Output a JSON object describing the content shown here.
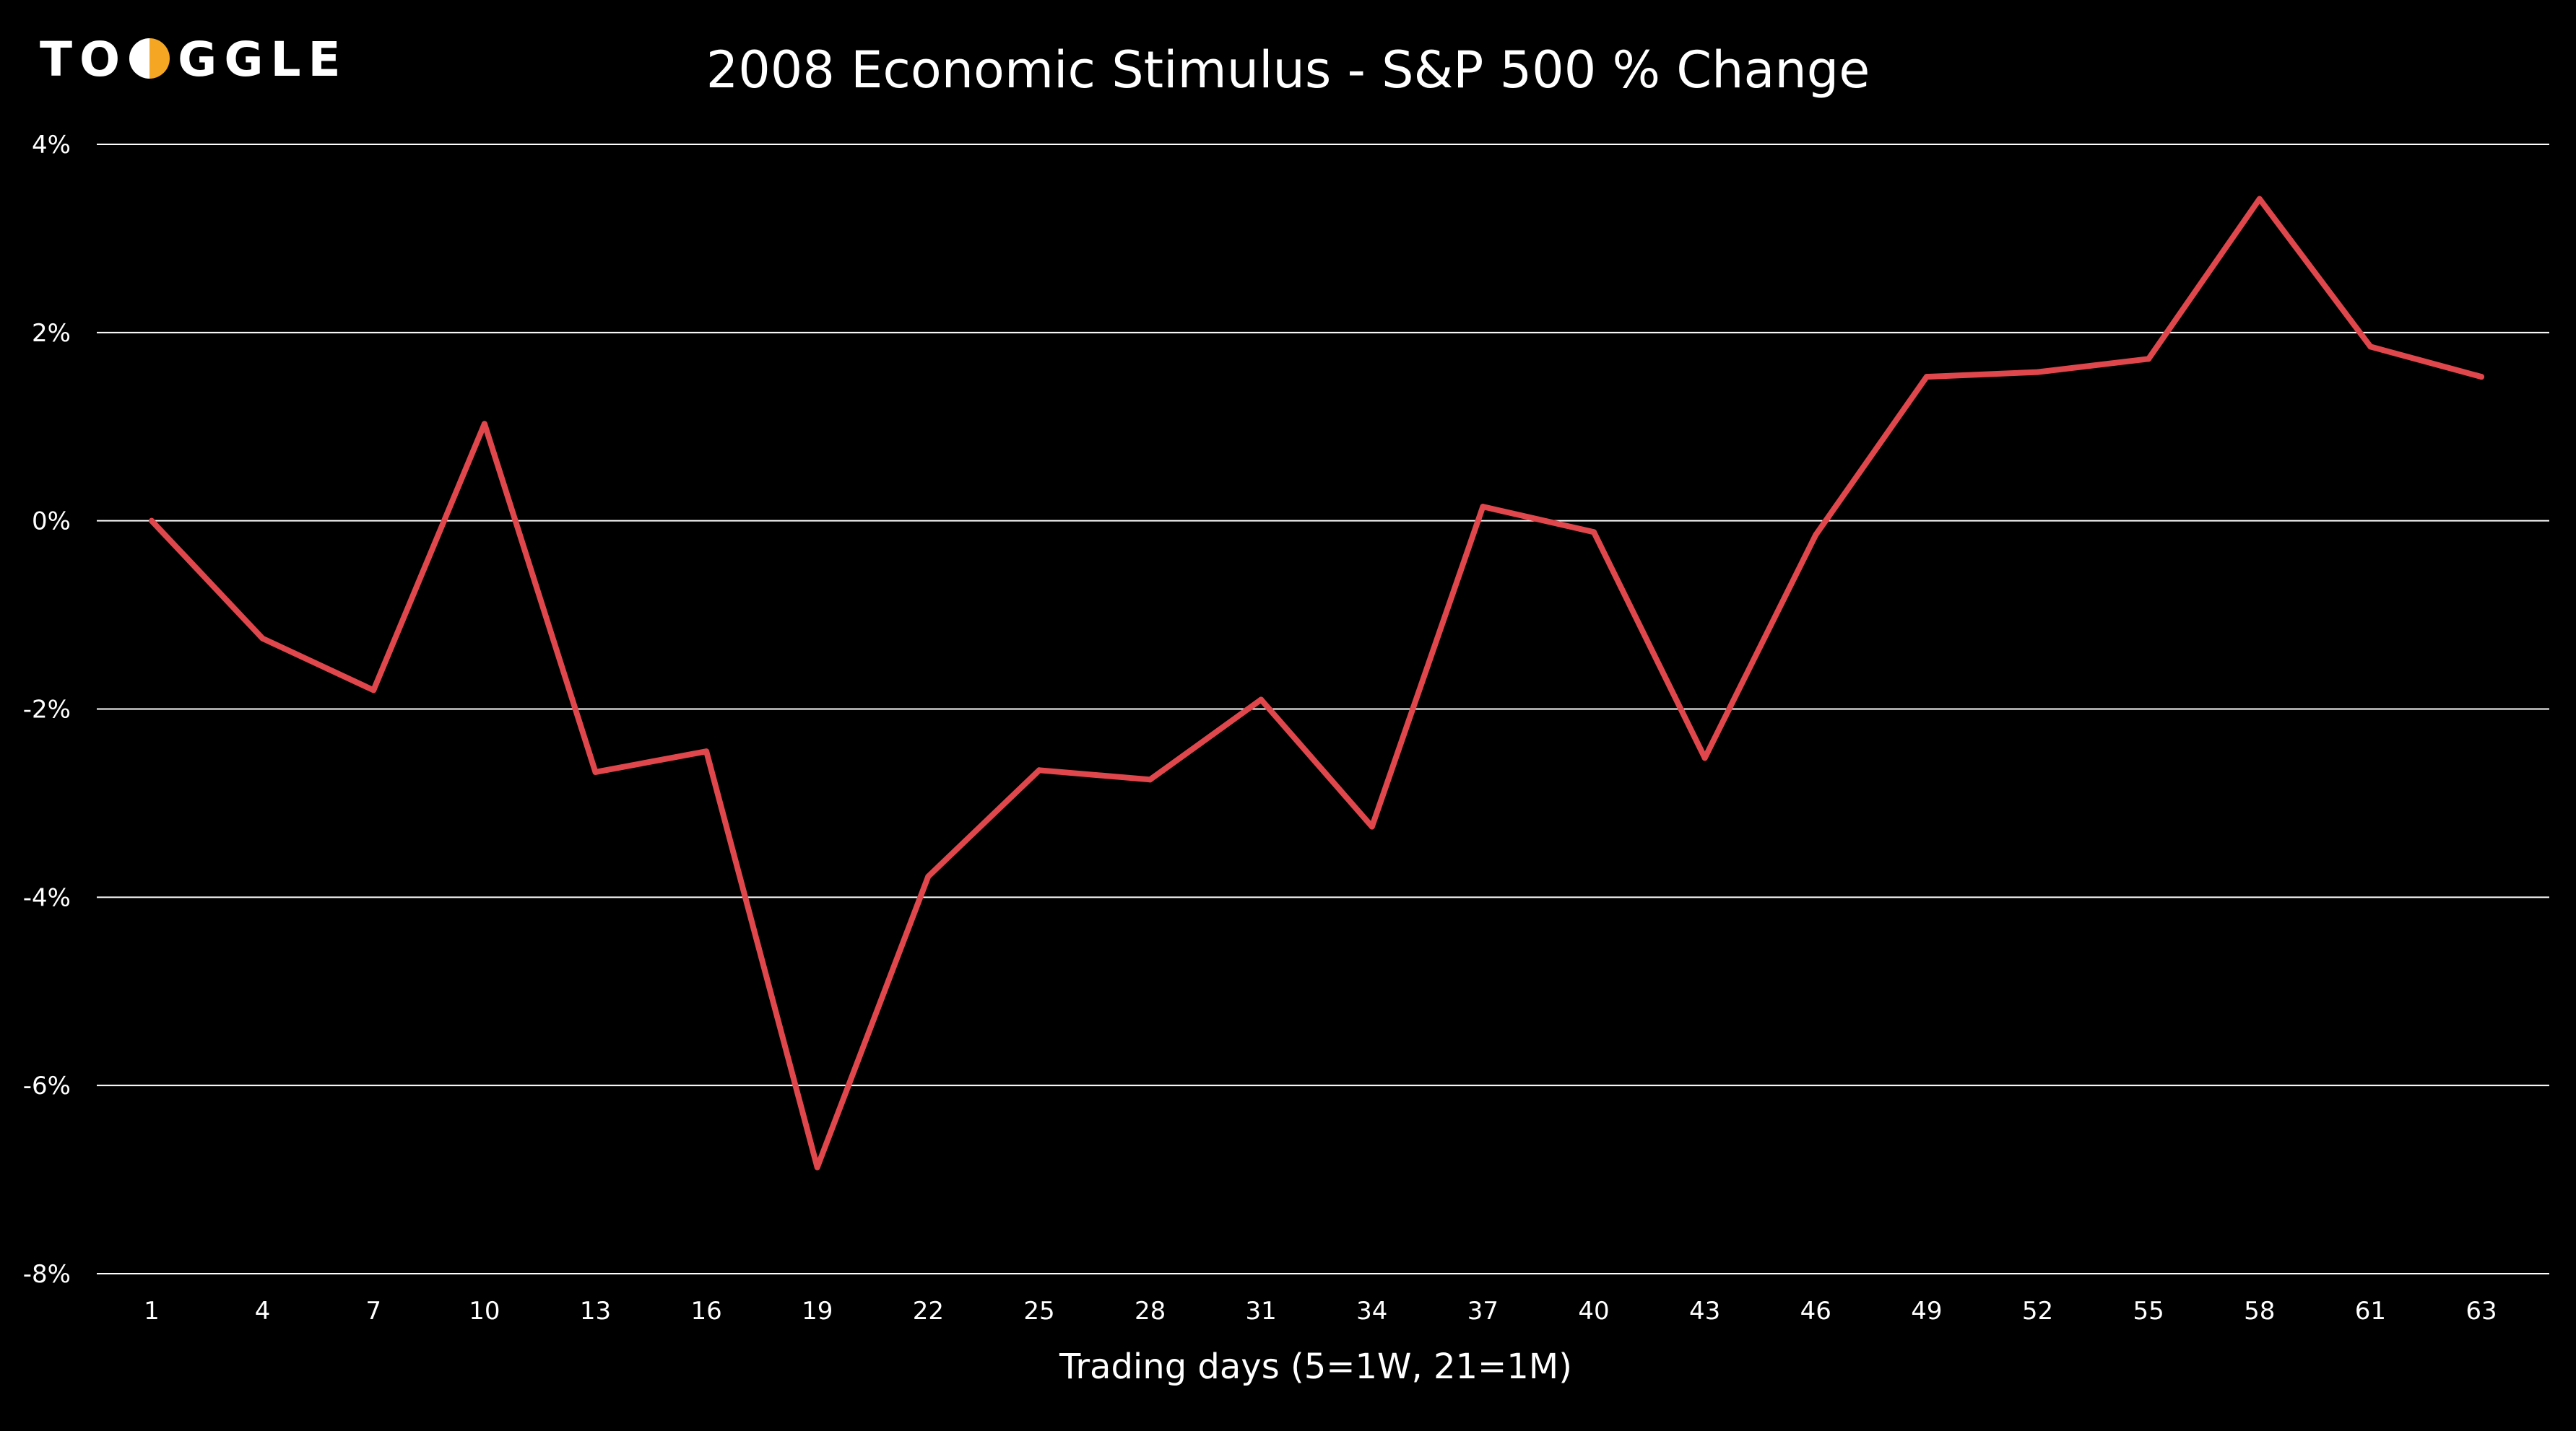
{
  "logo": {
    "text_before": "TO",
    "text_after": "GGLE",
    "mark_icon": "half-circle-o-icon",
    "mark_color": "#F5A623"
  },
  "chart_data": {
    "type": "line",
    "title": "2008 Economic Stimulus - S&P 500 % Change",
    "xlabel": "Trading days (5=1W, 21=1M)",
    "ylabel": "",
    "x": [
      1,
      4,
      7,
      10,
      13,
      16,
      19,
      22,
      25,
      28,
      31,
      34,
      37,
      40,
      43,
      46,
      49,
      52,
      55,
      58,
      61,
      63
    ],
    "y_tick_values": [
      4,
      2,
      0,
      -2,
      -4,
      -6,
      -8
    ],
    "y_tick_labels": [
      "4%",
      "2%",
      "0%",
      "-2%",
      "-4%",
      "-6%",
      "-8%"
    ],
    "ylim": [
      -8,
      4
    ],
    "grid": true,
    "series": [
      {
        "values": [
          0.0,
          -1.25,
          -1.8,
          1.03,
          -2.67,
          -2.45,
          -6.87,
          -3.78,
          -2.65,
          -2.75,
          -1.9,
          -3.25,
          0.15,
          -0.12,
          -2.52,
          -0.15,
          1.53,
          1.58,
          1.72,
          3.42,
          1.85,
          1.53
        ],
        "color": "#E0474C"
      }
    ],
    "background_color": "#000000",
    "grid_color": "#FFFFFF"
  }
}
